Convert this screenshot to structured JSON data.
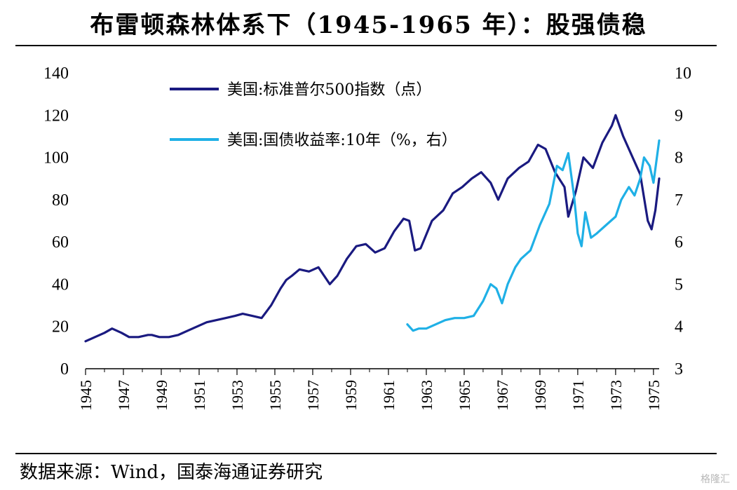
{
  "header": {
    "title": "布雷顿森林体系下（1945-1965 年）：股强债稳"
  },
  "footer": {
    "source": "数据来源：Wind，国泰海通证券研究",
    "watermark": "格隆汇"
  },
  "colors": {
    "sp500": "#1a1a80",
    "yield": "#1fb0e6",
    "axis": "#000000"
  },
  "chart_data": {
    "type": "line",
    "title": "布雷顿森林体系下（1945-1965 年）：股强债稳",
    "x_ticks": [
      "1945",
      "1947",
      "1949",
      "1951",
      "1953",
      "1955",
      "1957",
      "1959",
      "1961",
      "1963",
      "1965",
      "1967",
      "1969",
      "1971",
      "1973",
      "1975"
    ],
    "xlim": [
      1945,
      1975.3
    ],
    "y_left": {
      "lim": [
        0,
        140
      ],
      "ticks": [
        0,
        20,
        40,
        60,
        80,
        100,
        120,
        140
      ]
    },
    "y_right": {
      "lim": [
        3,
        10
      ],
      "ticks": [
        3,
        4,
        5,
        6,
        7,
        8,
        9,
        10
      ]
    },
    "legend_position": "top-left",
    "grid": false,
    "series": [
      {
        "name": "美国:标准普尔500指数（点）",
        "axis": "left",
        "color": "#1a1a80",
        "x": [
          1945.0,
          1945.5,
          1946.0,
          1946.4,
          1946.9,
          1947.3,
          1947.8,
          1948.3,
          1948.5,
          1948.9,
          1949.4,
          1949.9,
          1950.4,
          1950.9,
          1951.4,
          1951.9,
          1952.4,
          1952.9,
          1953.3,
          1953.8,
          1954.3,
          1954.8,
          1955.3,
          1955.6,
          1955.9,
          1956.3,
          1956.8,
          1957.3,
          1957.6,
          1957.9,
          1958.3,
          1958.8,
          1959.3,
          1959.8,
          1960.3,
          1960.8,
          1961.3,
          1961.8,
          1962.1,
          1962.4,
          1962.7,
          1963.3,
          1963.9,
          1964.4,
          1964.9,
          1965.4,
          1965.9,
          1966.4,
          1966.8,
          1967.3,
          1967.9,
          1968.4,
          1968.9,
          1969.3,
          1969.8,
          1970.3,
          1970.5,
          1970.9,
          1971.3,
          1971.8,
          1972.3,
          1972.8,
          1973.0,
          1973.4,
          1973.9,
          1974.3,
          1974.7,
          1974.9,
          1975.1,
          1975.3
        ],
        "y": [
          13,
          15,
          17,
          19,
          17,
          15,
          15,
          16,
          16,
          15,
          15,
          16,
          18,
          20,
          22,
          23,
          24,
          25,
          26,
          25,
          24,
          30,
          38,
          42,
          44,
          47,
          46,
          48,
          44,
          40,
          44,
          52,
          58,
          59,
          55,
          57,
          65,
          71,
          70,
          56,
          57,
          70,
          75,
          83,
          86,
          90,
          93,
          88,
          80,
          90,
          95,
          98,
          106,
          104,
          93,
          86,
          72,
          84,
          100,
          95,
          107,
          115,
          120,
          110,
          100,
          92,
          70,
          66,
          75,
          90
        ]
      },
      {
        "name": "美国:国债收益率:10年（%，右）",
        "axis": "right",
        "color": "#1fb0e6",
        "x": [
          1962.0,
          1962.3,
          1962.6,
          1963.0,
          1963.5,
          1964.0,
          1964.5,
          1965.0,
          1965.5,
          1966.0,
          1966.4,
          1966.7,
          1967.0,
          1967.3,
          1967.7,
          1968.0,
          1968.5,
          1969.0,
          1969.5,
          1969.9,
          1970.2,
          1970.5,
          1970.8,
          1971.0,
          1971.2,
          1971.4,
          1971.7,
          1972.0,
          1972.5,
          1973.0,
          1973.3,
          1973.7,
          1974.0,
          1974.3,
          1974.5,
          1974.8,
          1975.0,
          1975.3
        ],
        "y": [
          4.05,
          3.9,
          3.95,
          3.95,
          4.05,
          4.15,
          4.2,
          4.2,
          4.25,
          4.6,
          5.0,
          4.9,
          4.55,
          5.0,
          5.4,
          5.6,
          5.8,
          6.4,
          6.9,
          7.8,
          7.7,
          8.1,
          7.1,
          6.2,
          5.9,
          6.7,
          6.1,
          6.2,
          6.4,
          6.6,
          7.0,
          7.3,
          7.1,
          7.5,
          8.0,
          7.8,
          7.4,
          8.4
        ]
      }
    ]
  }
}
